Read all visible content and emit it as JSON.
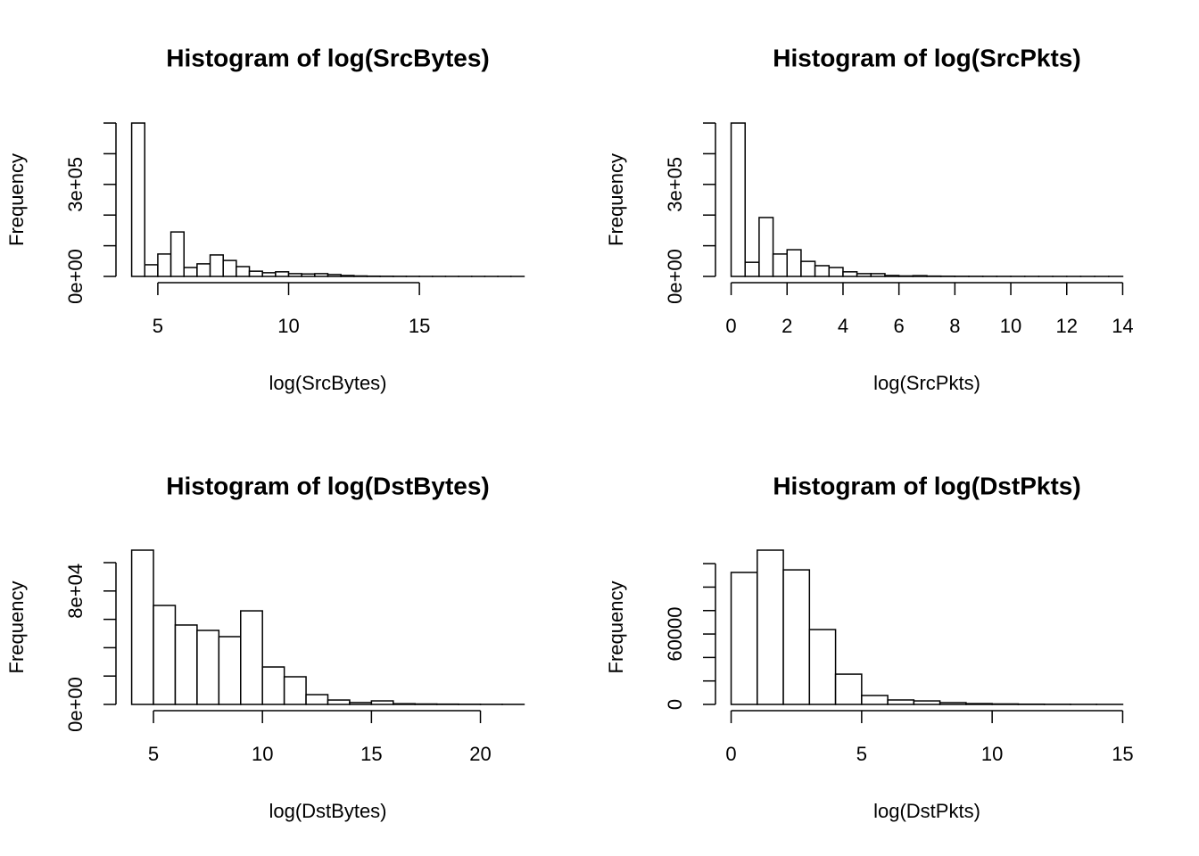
{
  "chart_data": [
    {
      "type": "histogram",
      "title": "Histogram of log(SrcBytes)",
      "xlabel": "log(SrcBytes)",
      "ylabel": "Frequency",
      "color": "#ffffff",
      "edgecolor": "#000000",
      "bins": [
        4,
        4.5,
        5,
        5.5,
        6,
        6.5,
        7,
        7.5,
        8,
        8.5,
        9,
        9.5,
        10,
        10.5,
        11,
        11.5,
        12,
        12.5,
        13,
        13.5,
        14,
        14.5,
        15,
        15.5,
        16,
        16.5,
        17,
        17.5,
        18,
        18.5,
        19
      ],
      "counts": [
        500000,
        38000,
        73000,
        145000,
        29000,
        41000,
        70000,
        52000,
        32000,
        17000,
        12000,
        15000,
        9000,
        8000,
        9000,
        6000,
        3000,
        1500,
        800,
        500,
        300,
        200,
        100,
        100,
        50,
        50,
        30,
        20,
        10,
        10
      ],
      "xlim": [
        3.4,
        19.6
      ],
      "ylim": [
        0,
        500000
      ],
      "xticks": [
        5,
        10,
        15
      ],
      "yticks": [
        {
          "value": 0,
          "label": "0e+00"
        },
        {
          "value": 100000,
          "label": null
        },
        {
          "value": 200000,
          "label": null
        },
        {
          "value": 300000,
          "label": "3e+05"
        },
        {
          "value": 400000,
          "label": null
        },
        {
          "value": 500000,
          "label": null
        }
      ]
    },
    {
      "type": "histogram",
      "title": "Histogram of log(SrcPkts)",
      "xlabel": "log(SrcPkts)",
      "ylabel": "Frequency",
      "color": "#ffffff",
      "edgecolor": "#000000",
      "bins": [
        0,
        0.5,
        1,
        1.5,
        2,
        2.5,
        3,
        3.5,
        4,
        4.5,
        5,
        5.5,
        6,
        6.5,
        7,
        7.5,
        8,
        8.5,
        9,
        9.5,
        10,
        10.5,
        11,
        11.5,
        12,
        12.5,
        13,
        13.5,
        14
      ],
      "counts": [
        500000,
        46000,
        192000,
        73000,
        87000,
        49000,
        35000,
        29000,
        15000,
        9000,
        9000,
        3000,
        1500,
        2500,
        1000,
        600,
        400,
        300,
        200,
        150,
        100,
        80,
        50,
        30,
        20,
        10,
        10,
        5
      ],
      "xlim": [
        -0.56,
        14.56
      ],
      "ylim": [
        0,
        500000
      ],
      "xticks": [
        0,
        2,
        4,
        6,
        8,
        10,
        12,
        14
      ],
      "yticks": [
        {
          "value": 0,
          "label": "0e+00"
        },
        {
          "value": 100000,
          "label": null
        },
        {
          "value": 200000,
          "label": null
        },
        {
          "value": 300000,
          "label": "3e+05"
        },
        {
          "value": 400000,
          "label": null
        },
        {
          "value": 500000,
          "label": null
        }
      ]
    },
    {
      "type": "histogram",
      "title": "Histogram of log(DstBytes)",
      "xlabel": "log(DstBytes)",
      "ylabel": "Frequency",
      "color": "#ffffff",
      "edgecolor": "#000000",
      "bins": [
        4,
        5,
        6,
        7,
        8,
        9,
        10,
        11,
        12,
        13,
        14,
        15,
        16,
        17,
        18,
        19,
        20,
        21,
        22
      ],
      "counts": [
        108800,
        69800,
        56000,
        52200,
        47800,
        66000,
        26400,
        19500,
        6900,
        3100,
        1300,
        2500,
        500,
        300,
        200,
        100,
        50,
        30
      ],
      "xlim": [
        3.28,
        22.72
      ],
      "ylim": [
        0,
        108800
      ],
      "xticks": [
        5,
        10,
        15,
        20
      ],
      "yticks": [
        {
          "value": 0,
          "label": "0e+00"
        },
        {
          "value": 20000,
          "label": null
        },
        {
          "value": 40000,
          "label": null
        },
        {
          "value": 60000,
          "label": null
        },
        {
          "value": 80000,
          "label": "8e+04"
        },
        {
          "value": 100000,
          "label": null
        }
      ]
    },
    {
      "type": "histogram",
      "title": "Histogram of log(DstPkts)",
      "xlabel": "log(DstPkts)",
      "ylabel": "Frequency",
      "color": "#ffffff",
      "edgecolor": "#000000",
      "bins": [
        0,
        1,
        2,
        3,
        4,
        5,
        6,
        7,
        8,
        9,
        10,
        11,
        12,
        13,
        14,
        15
      ],
      "counts": [
        112500,
        131500,
        114700,
        63800,
        25800,
        7600,
        3800,
        3000,
        1500,
        700,
        400,
        200,
        100,
        50,
        30
      ],
      "xlim": [
        -0.6,
        15.6
      ],
      "ylim": [
        0,
        131500
      ],
      "xticks": [
        0,
        5,
        10,
        15
      ],
      "yticks": [
        0,
        {
          "value": 20000,
          "label": null
        },
        {
          "value": 40000,
          "label": null
        },
        60000,
        {
          "value": 80000,
          "label": null
        },
        {
          "value": 100000,
          "label": null
        },
        {
          "value": 120000,
          "label": null
        }
      ]
    }
  ]
}
